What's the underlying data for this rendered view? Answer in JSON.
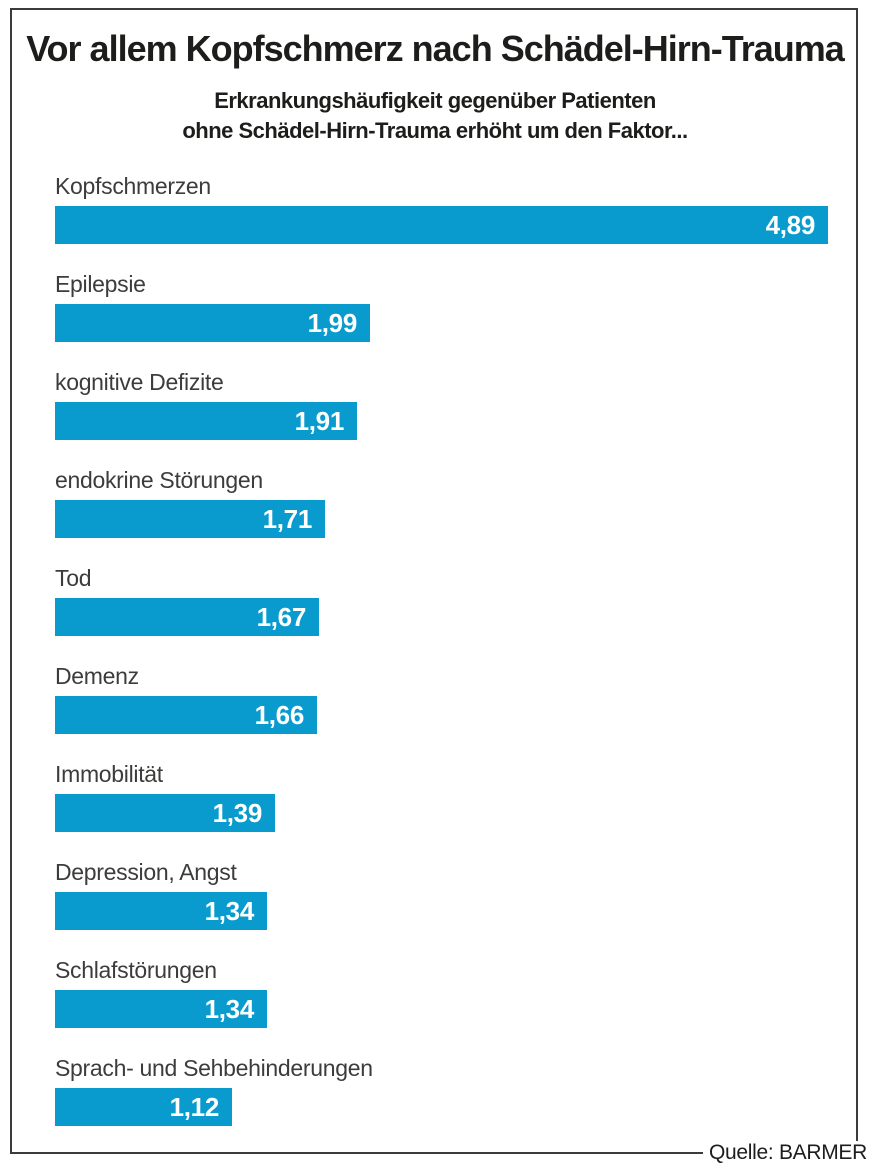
{
  "title": "Vor allem Kopfschmerz nach Schädel-Hirn-Trauma",
  "subtitle_line1": "Erkrankungshäufigkeit gegenüber Patienten",
  "subtitle_line2": "ohne Schädel-Hirn-Trauma erhöht um den Faktor...",
  "source": "Quelle: BARMER",
  "colors": {
    "bar": "#0a9bce",
    "frame": "#3b3b3a",
    "title_text": "#1d1d1b",
    "label_text": "#3c3c3b",
    "value_text": "#ffffff"
  },
  "chart_data": {
    "type": "bar",
    "orientation": "horizontal",
    "title": "Vor allem Kopfschmerz nach Schädel-Hirn-Trauma",
    "subtitle": "Erkrankungshäufigkeit gegenüber Patienten ohne Schädel-Hirn-Trauma erhöht um den Faktor...",
    "categories": [
      "Kopfschmerzen",
      "Epilepsie",
      "kognitive Defizite",
      "endokrine Störungen",
      "Tod",
      "Demenz",
      "Immobilität",
      "Depression, Angst",
      "Schlafstörungen",
      "Sprach- und Sehbehinderungen"
    ],
    "values": [
      4.89,
      1.99,
      1.91,
      1.71,
      1.67,
      1.66,
      1.39,
      1.34,
      1.34,
      1.12
    ],
    "value_labels": [
      "4,89",
      "1,99",
      "1,91",
      "1,71",
      "1,67",
      "1,66",
      "1,39",
      "1,34",
      "1,34",
      "1,12"
    ],
    "xlim": [
      0,
      4.89
    ],
    "grid": false,
    "legend": false,
    "value_labels_position": "inside-end",
    "source": "Quelle: BARMER"
  }
}
